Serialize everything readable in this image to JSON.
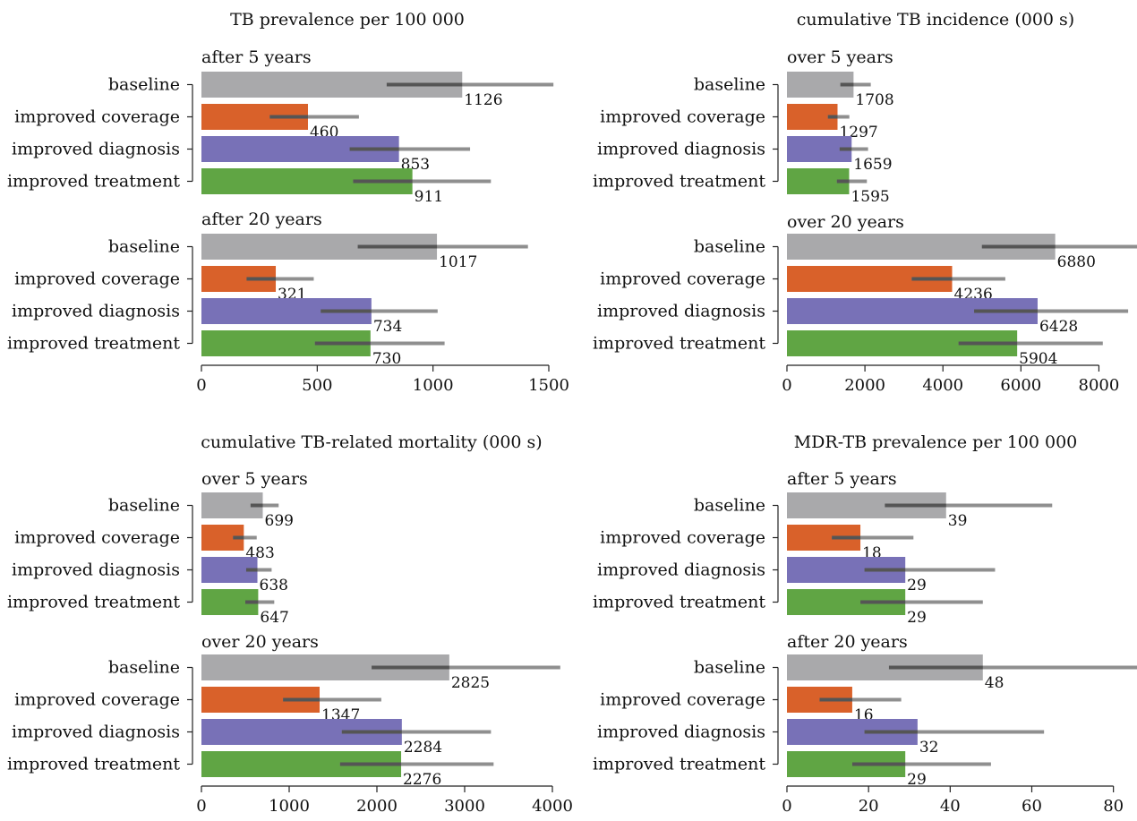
{
  "colors": {
    "baseline": "#a9a9ab",
    "improved coverage": "#d9612a",
    "improved diagnosis": "#7871b7",
    "improved treatment": "#60a544",
    "ci_dark": "#555555",
    "ci_light": "#8f8f8f"
  },
  "chart_data": [
    {
      "type": "bar",
      "orientation": "horizontal",
      "title": "TB prevalence per 100 000",
      "categories": [
        "baseline",
        "improved coverage",
        "improved diagnosis",
        "improved treatment"
      ],
      "xlim": [
        0,
        1500
      ],
      "ticks": [
        0,
        500,
        1000,
        1500
      ],
      "groups": [
        {
          "label": "after 5 years",
          "values": [
            1126,
            460,
            853,
            911
          ],
          "ci_inner": [
            [
              800,
              1126
            ],
            [
              295,
              460
            ],
            [
              640,
              853
            ],
            [
              655,
              911
            ]
          ],
          "ci_outer": [
            [
              800,
              1520
            ],
            [
              295,
              680
            ],
            [
              640,
              1160
            ],
            [
              655,
              1250
            ]
          ]
        },
        {
          "label": "after 20 years",
          "values": [
            1017,
            321,
            734,
            730
          ],
          "ci_inner": [
            [
              675,
              1017
            ],
            [
              195,
              321
            ],
            [
              515,
              734
            ],
            [
              490,
              730
            ]
          ],
          "ci_outer": [
            [
              675,
              1410
            ],
            [
              195,
              485
            ],
            [
              515,
              1020
            ],
            [
              490,
              1050
            ]
          ]
        }
      ]
    },
    {
      "type": "bar",
      "orientation": "horizontal",
      "title": "cumulative TB incidence (000 s)",
      "categories": [
        "baseline",
        "improved coverage",
        "improved diagnosis",
        "improved treatment"
      ],
      "xlim": [
        0,
        9000
      ],
      "ticks": [
        0,
        2000,
        4000,
        6000,
        8000
      ],
      "groups": [
        {
          "label": "over 5 years",
          "values": [
            1708,
            1297,
            1659,
            1595
          ],
          "ci_inner": [
            [
              1370,
              1708
            ],
            [
              1050,
              1297
            ],
            [
              1350,
              1659
            ],
            [
              1280,
              1595
            ]
          ],
          "ci_outer": [
            [
              1370,
              2150
            ],
            [
              1050,
              1600
            ],
            [
              1350,
              2080
            ],
            [
              1280,
              2050
            ]
          ]
        },
        {
          "label": "over 20 years",
          "values": [
            6880,
            4236,
            6428,
            5904
          ],
          "ci_inner": [
            [
              5000,
              6880
            ],
            [
              3200,
              4236
            ],
            [
              4800,
              6428
            ],
            [
              4400,
              5904
            ]
          ],
          "ci_outer": [
            [
              5000,
              9050
            ],
            [
              3200,
              5600
            ],
            [
              4800,
              8750
            ],
            [
              4400,
              8100
            ]
          ]
        }
      ]
    },
    {
      "type": "bar",
      "orientation": "horizontal",
      "title": "cumulative TB-related mortality (000 s)",
      "categories": [
        "baseline",
        "improved coverage",
        "improved diagnosis",
        "improved treatment"
      ],
      "xlim": [
        0,
        4000
      ],
      "ticks": [
        0,
        1000,
        2000,
        3000,
        4000
      ],
      "groups": [
        {
          "label": "over 5 years",
          "values": [
            699,
            483,
            638,
            647
          ],
          "ci_inner": [
            [
              560,
              699
            ],
            [
              360,
              483
            ],
            [
              510,
              638
            ],
            [
              500,
              647
            ]
          ],
          "ci_outer": [
            [
              560,
              880
            ],
            [
              360,
              630
            ],
            [
              510,
              800
            ],
            [
              500,
              830
            ]
          ]
        },
        {
          "label": "over 20 years",
          "values": [
            2825,
            1347,
            2284,
            2276
          ],
          "ci_inner": [
            [
              1940,
              2825
            ],
            [
              930,
              1347
            ],
            [
              1600,
              2284
            ],
            [
              1580,
              2276
            ]
          ],
          "ci_outer": [
            [
              1940,
              4090
            ],
            [
              930,
              2050
            ],
            [
              1600,
              3300
            ],
            [
              1580,
              3330
            ]
          ]
        }
      ]
    },
    {
      "type": "bar",
      "orientation": "horizontal",
      "title": "MDR-TB prevalence per 100 000",
      "categories": [
        "baseline",
        "improved coverage",
        "improved diagnosis",
        "improved treatment"
      ],
      "xlim": [
        0,
        86
      ],
      "ticks": [
        0,
        20,
        40,
        60,
        80
      ],
      "groups": [
        {
          "label": "after 5 years",
          "values": [
            39,
            18,
            29,
            29
          ],
          "ci_inner": [
            [
              24,
              39
            ],
            [
              11,
              18
            ],
            [
              19,
              29
            ],
            [
              18,
              29
            ]
          ],
          "ci_outer": [
            [
              24,
              65
            ],
            [
              11,
              31
            ],
            [
              19,
              51
            ],
            [
              18,
              48
            ]
          ]
        },
        {
          "label": "after 20 years",
          "values": [
            48,
            16,
            32,
            29
          ],
          "ci_inner": [
            [
              25,
              48
            ],
            [
              8,
              16
            ],
            [
              19,
              32
            ],
            [
              16,
              29
            ]
          ],
          "ci_outer": [
            [
              25,
              86
            ],
            [
              8,
              28
            ],
            [
              19,
              63
            ],
            [
              16,
              50
            ]
          ]
        }
      ]
    }
  ]
}
